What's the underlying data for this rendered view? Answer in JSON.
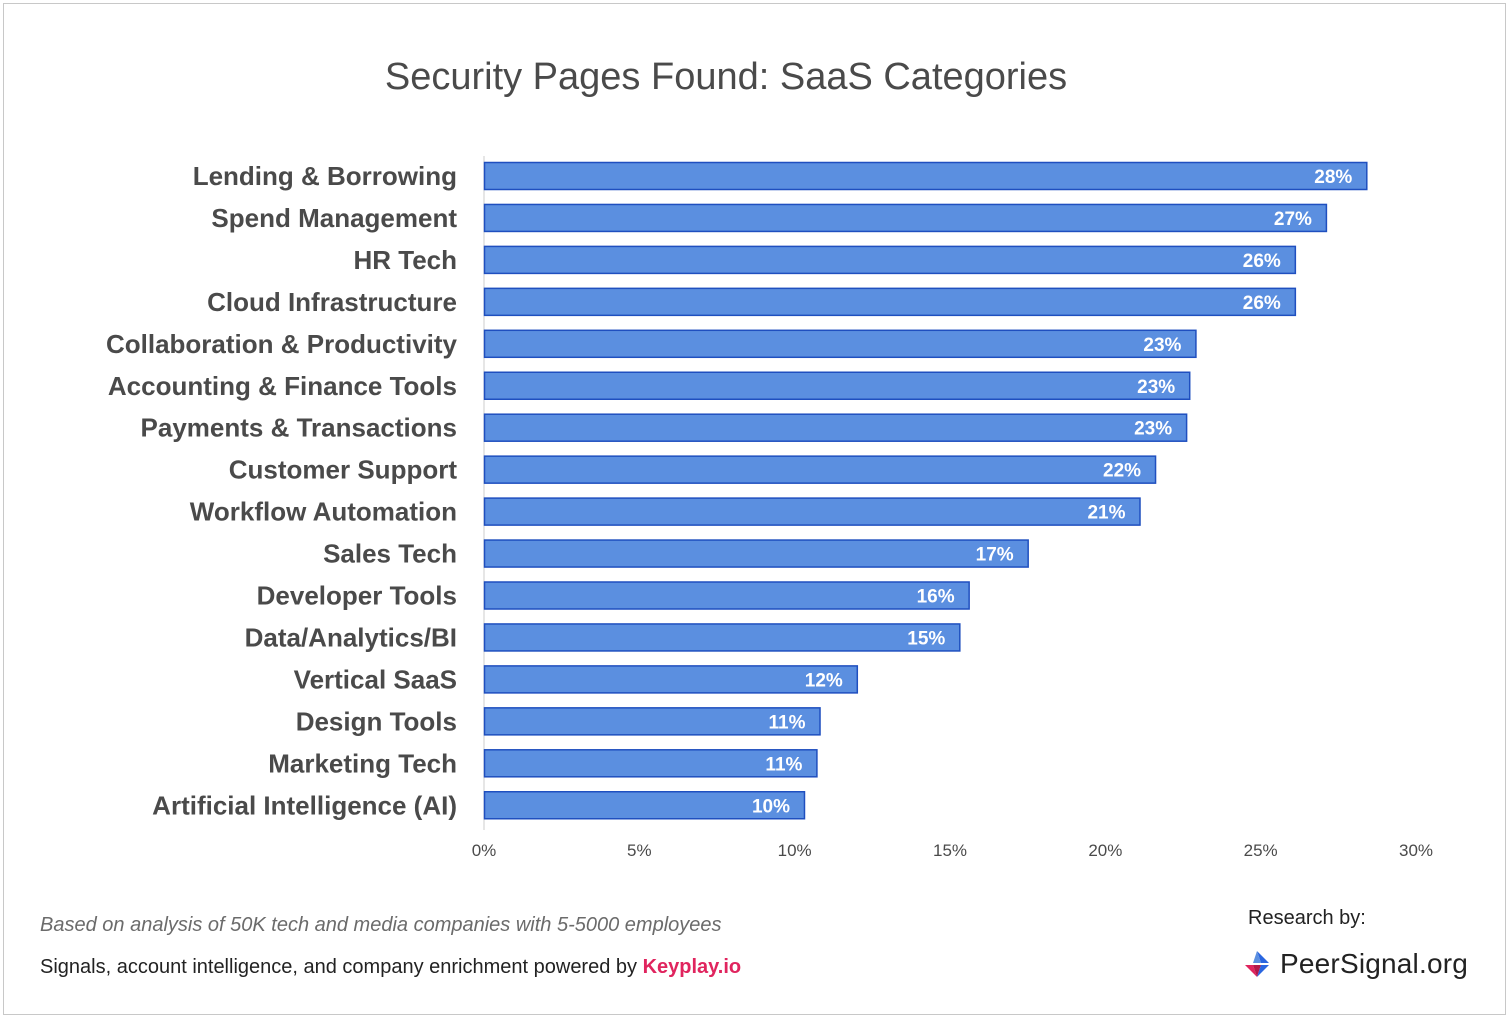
{
  "chart_data": {
    "type": "bar",
    "orientation": "horizontal",
    "title": "Security Pages Found: SaaS Categories",
    "categories": [
      "Lending & Borrowing",
      "Spend Management",
      "HR Tech",
      "Cloud Infrastructure",
      "Collaboration & Productivity",
      "Accounting & Finance Tools",
      "Payments & Transactions",
      "Customer Support",
      "Workflow Automation",
      "Sales Tech",
      "Developer Tools",
      "Data/Analytics/BI",
      "Vertical SaaS",
      "Design Tools",
      "Marketing Tech",
      "Artificial Intelligence (AI)"
    ],
    "values": [
      28.4,
      27.1,
      26.1,
      26.1,
      22.9,
      22.7,
      22.6,
      21.6,
      21.1,
      17.5,
      15.6,
      15.3,
      12.0,
      10.8,
      10.7,
      10.3
    ],
    "data_labels": [
      "28%",
      "27%",
      "26%",
      "26%",
      "23%",
      "23%",
      "23%",
      "22%",
      "21%",
      "17%",
      "16%",
      "15%",
      "12%",
      "11%",
      "11%",
      "10%"
    ],
    "xlim": [
      0,
      30
    ],
    "x_ticks": [
      0,
      5,
      10,
      15,
      20,
      25,
      30
    ],
    "x_tick_labels": [
      "0%",
      "5%",
      "10%",
      "15%",
      "20%",
      "25%",
      "30%"
    ],
    "grid": false,
    "legend": "none",
    "colors": {
      "bar_fill": "#5b8fe0",
      "bar_stroke": "#1f4fbf",
      "label_text": "#4a4a4a",
      "data_label": "#ffffff",
      "axis": "#cccccc"
    }
  },
  "footer": {
    "note": "Based on analysis of 50K tech and media companies with 5-5000 employees",
    "credit_prefix": "Signals, account intelligence, and company enrichment powered by ",
    "credit_brand": "Keyplay.io",
    "research_label": "Research by:",
    "logo_text": "PeerSignal.org",
    "brand_color": "#e0245e"
  }
}
